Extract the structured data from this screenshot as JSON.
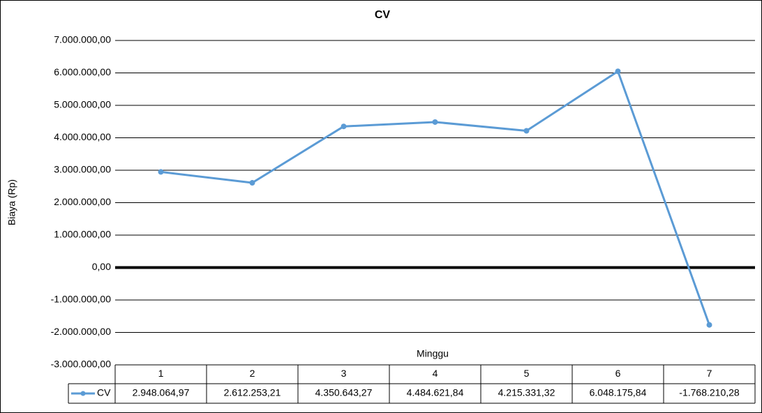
{
  "chart_data": {
    "type": "line",
    "title": "CV",
    "x_label": "Minggu",
    "y_label": "Biaya (Rp)",
    "categories": [
      "1",
      "2",
      "3",
      "4",
      "5",
      "6",
      "7"
    ],
    "series": [
      {
        "name": "CV",
        "color": "#5b9bd5",
        "values": [
          2948064.97,
          2612253.21,
          4350643.27,
          4484621.84,
          4215331.32,
          6048175.84,
          -1768210.28
        ],
        "value_labels": [
          "2.948.064,97",
          "2.612.253,21",
          "4.350.643,27",
          "4.484.621,84",
          "4.215.331,32",
          "6.048.175,84",
          "-1.768.210,28"
        ]
      }
    ],
    "ylim": [
      -3000000,
      7000000
    ],
    "yticks": [
      {
        "value": -3000000,
        "label": "-3.000.000,00"
      },
      {
        "value": -2000000,
        "label": "-2.000.000,00"
      },
      {
        "value": -1000000,
        "label": "-1.000.000,00"
      },
      {
        "value": 0,
        "label": "0,00"
      },
      {
        "value": 1000000,
        "label": "1.000.000,00"
      },
      {
        "value": 2000000,
        "label": "2.000.000,00"
      },
      {
        "value": 3000000,
        "label": "3.000.000,00"
      },
      {
        "value": 4000000,
        "label": "4.000.000,00"
      },
      {
        "value": 5000000,
        "label": "5.000.000,00"
      },
      {
        "value": 6000000,
        "label": "6.000.000,00"
      },
      {
        "value": 7000000,
        "label": "7.000.000,00"
      }
    ],
    "grid": true,
    "data_table": true
  }
}
